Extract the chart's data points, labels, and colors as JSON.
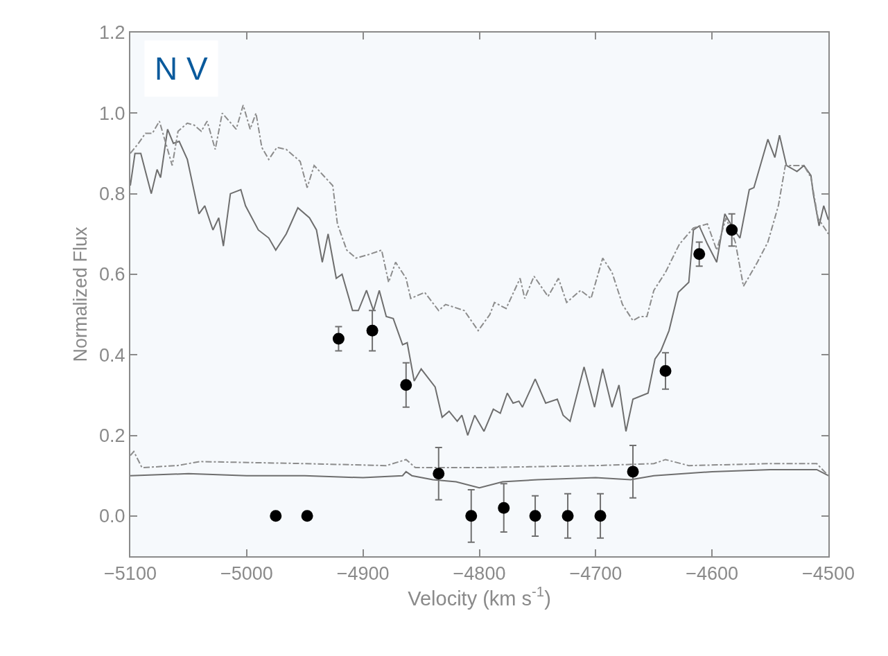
{
  "chart_data": {
    "type": "line",
    "xlabel": "Velocity (km s$^{-1}$)",
    "ylabel": "Normalized Flux",
    "annotations": [
      "N V"
    ],
    "xlim": [
      -5100,
      -4500
    ],
    "xticks": [
      -5100,
      -5000,
      -4900,
      -4800,
      -4700,
      -4600,
      -4500
    ],
    "ylim": [
      -0.1,
      1.2
    ],
    "yticks": [
      {
        "value": 0,
        "label": "0.0"
      },
      0.2,
      0.4,
      0.6,
      0.8,
      {
        "value": 1,
        "label": "1.0"
      },
      1.2
    ],
    "grid": false,
    "series": [
      {
        "line_style": "solid",
        "marker": "none",
        "color": "#6e6e6e",
        "x": [
          -5100,
          -5096,
          -5091,
          -5082,
          -5077,
          -5074,
          -5068,
          -5063,
          -5058,
          -5051,
          -5041,
          -5036,
          -5029,
          -5024,
          -5020,
          -5014,
          -5005,
          -5001,
          -4990,
          -4981,
          -4975,
          -4966,
          -4956,
          -4946,
          -4940,
          -4935,
          -4930,
          -4923,
          -4918,
          -4909,
          -4904,
          -4897,
          -4891,
          -4886,
          -4880,
          -4874,
          -4866,
          -4862,
          -4856,
          -4850,
          -4838,
          -4832,
          -4826,
          -4819,
          -4815,
          -4810,
          -4804,
          -4796,
          -4788,
          -4782,
          -4776,
          -4771,
          -4766,
          -4763,
          -4752,
          -4743,
          -4733,
          -4728,
          -4722,
          -4710,
          -4701,
          -4694,
          -4686,
          -4680,
          -4674,
          -4668,
          -4655,
          -4649,
          -4644,
          -4637,
          -4629,
          -4620,
          -4616,
          -4611,
          -4604,
          -4596,
          -4589,
          -4581,
          -4576,
          -4568,
          -4564,
          -4558,
          -4552,
          -4546,
          -4542,
          -4536,
          -4527,
          -4521,
          -4515,
          -4513,
          -4508,
          -4504,
          -4500
        ],
        "values": [
          0.82,
          0.9,
          0.9,
          0.8,
          0.86,
          0.84,
          0.96,
          0.925,
          0.93,
          0.885,
          0.75,
          0.77,
          0.71,
          0.74,
          0.67,
          0.8,
          0.81,
          0.77,
          0.71,
          0.69,
          0.66,
          0.7,
          0.765,
          0.74,
          0.71,
          0.63,
          0.7,
          0.59,
          0.6,
          0.51,
          0.51,
          0.56,
          0.51,
          0.56,
          0.495,
          0.49,
          0.425,
          0.43,
          0.335,
          0.365,
          0.32,
          0.245,
          0.26,
          0.235,
          0.25,
          0.2,
          0.25,
          0.21,
          0.265,
          0.255,
          0.305,
          0.28,
          0.285,
          0.27,
          0.34,
          0.28,
          0.29,
          0.25,
          0.235,
          0.37,
          0.27,
          0.365,
          0.27,
          0.325,
          0.21,
          0.29,
          0.305,
          0.39,
          0.41,
          0.46,
          0.555,
          0.58,
          0.71,
          0.72,
          0.675,
          0.63,
          0.75,
          0.71,
          0.69,
          0.81,
          0.815,
          0.875,
          0.935,
          0.89,
          0.945,
          0.87,
          0.855,
          0.87,
          0.845,
          0.8,
          0.72,
          0.77,
          0.735
        ]
      },
      {
        "line_style": "dashed",
        "marker": "none",
        "color": "#8c8c8c",
        "x": [
          -5100,
          -5093,
          -5087,
          -5081,
          -5075,
          -5070,
          -5064,
          -5059,
          -5051,
          -5045,
          -5039,
          -5034,
          -5027,
          -5023,
          -5021,
          -5015,
          -5009,
          -5003,
          -4997,
          -4992,
          -4987,
          -4981,
          -4974,
          -4966,
          -4954,
          -4948,
          -4942,
          -4934,
          -4926,
          -4922,
          -4914,
          -4906,
          -4894,
          -4884,
          -4878,
          -4872,
          -4863,
          -4859,
          -4847,
          -4835,
          -4829,
          -4813,
          -4801,
          -4791,
          -4787,
          -4777,
          -4765,
          -4761,
          -4753,
          -4741,
          -4732,
          -4725,
          -4713,
          -4704,
          -4694,
          -4686,
          -4677,
          -4668,
          -4662,
          -4656,
          -4650,
          -4640,
          -4628,
          -4616,
          -4604,
          -4596,
          -4588,
          -4580,
          -4573,
          -4561,
          -4552,
          -4543,
          -4537,
          -4521,
          -4515,
          -4509,
          -4500
        ],
        "values": [
          0.9,
          0.925,
          0.95,
          0.95,
          0.98,
          0.93,
          0.87,
          0.955,
          0.975,
          0.97,
          0.955,
          0.98,
          0.91,
          0.97,
          1.0,
          0.98,
          0.96,
          1.02,
          0.96,
          1.0,
          0.915,
          0.885,
          0.915,
          0.91,
          0.88,
          0.815,
          0.87,
          0.845,
          0.82,
          0.725,
          0.66,
          0.64,
          0.65,
          0.66,
          0.58,
          0.63,
          0.59,
          0.54,
          0.555,
          0.51,
          0.525,
          0.51,
          0.46,
          0.5,
          0.53,
          0.515,
          0.59,
          0.54,
          0.595,
          0.545,
          0.59,
          0.53,
          0.56,
          0.54,
          0.64,
          0.605,
          0.525,
          0.485,
          0.495,
          0.495,
          0.56,
          0.605,
          0.675,
          0.715,
          0.725,
          0.66,
          0.74,
          0.68,
          0.57,
          0.63,
          0.68,
          0.77,
          0.87,
          0.87,
          0.84,
          0.74,
          0.7
        ]
      },
      {
        "line_style": "solid",
        "marker": "none",
        "color": "#6e6e6e",
        "x": [
          -5100,
          -5050,
          -5000,
          -4950,
          -4900,
          -4866,
          -4863,
          -4858,
          -4840,
          -4820,
          -4800,
          -4780,
          -4750,
          -4700,
          -4670,
          -4650,
          -4600,
          -4550,
          -4510,
          -4500
        ],
        "values": [
          0.1,
          0.105,
          0.1,
          0.1,
          0.095,
          0.1,
          0.11,
          0.1,
          0.09,
          0.085,
          0.07,
          0.085,
          0.09,
          0.095,
          0.09,
          0.1,
          0.11,
          0.115,
          0.115,
          0.1
        ]
      },
      {
        "line_style": "dashed",
        "marker": "none",
        "color": "#8c8c8c",
        "x": [
          -5100,
          -5097,
          -5090,
          -5060,
          -5040,
          -4950,
          -4880,
          -4863,
          -4855,
          -4800,
          -4700,
          -4650,
          -4640,
          -4620,
          -4550,
          -4510,
          -4500
        ],
        "values": [
          0.15,
          0.16,
          0.12,
          0.125,
          0.135,
          0.13,
          0.125,
          0.14,
          0.12,
          0.12,
          0.125,
          0.13,
          0.14,
          0.125,
          0.13,
          0.13,
          0.1
        ]
      },
      {
        "type": "scatter",
        "marker": "circle",
        "color": "#000000",
        "x": [
          -4975,
          -4948,
          -4921,
          -4892,
          -4863,
          -4835,
          -4807,
          -4779,
          -4752,
          -4724,
          -4696,
          -4668,
          -4640,
          -4611,
          -4583
        ],
        "values": [
          0,
          0,
          0.44,
          0.46,
          0.325,
          0.105,
          0,
          0.02,
          0,
          0,
          0,
          0.11,
          0.36,
          0.65,
          0.71
        ],
        "errors": [
          null,
          null,
          0.03,
          0.05,
          0.055,
          0.065,
          0.065,
          0.06,
          0.05,
          0.055,
          0.055,
          0.065,
          0.045,
          0.03,
          0.04
        ]
      }
    ]
  }
}
